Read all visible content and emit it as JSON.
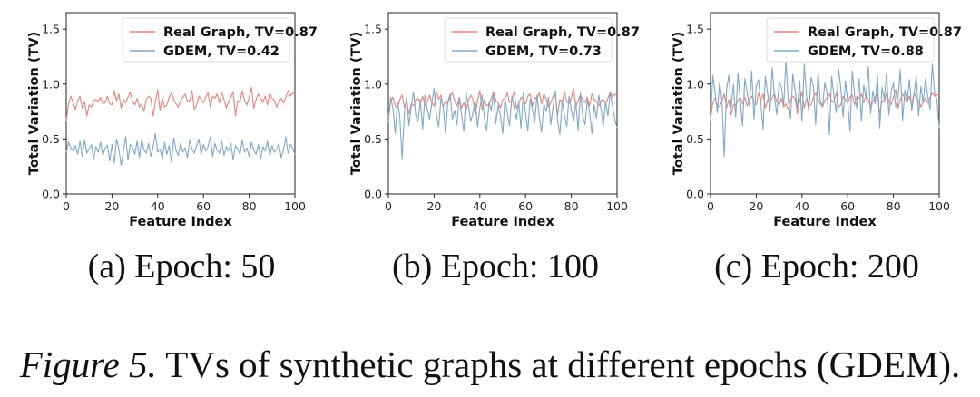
{
  "figure": {
    "caption_label": "Figure 5.",
    "caption_text": " TVs of synthetic graphs at different epochs (GDEM)."
  },
  "colors": {
    "real": "#e8837b",
    "gdem": "#7fa8c9"
  },
  "chart_data": [
    {
      "type": "line",
      "subcaption": "(a) Epoch: 50",
      "xlabel": "Feature Index",
      "ylabel": "Total Variation (TV)",
      "xlim": [
        0,
        100
      ],
      "ylim": [
        0.0,
        1.65
      ],
      "xticks": [
        "0",
        "20",
        "40",
        "60",
        "80",
        "100"
      ],
      "yticks": [
        "0.0",
        "0.5",
        "1.0",
        "1.5"
      ],
      "legend_position": "top-right",
      "series": [
        {
          "name": "Real Graph, TV=0.87",
          "values": [
            0.67,
            0.82,
            0.89,
            0.83,
            0.77,
            0.85,
            0.89,
            0.78,
            0.84,
            0.71,
            0.81,
            0.79,
            0.85,
            0.86,
            0.84,
            0.88,
            0.82,
            0.83,
            0.89,
            0.82,
            0.81,
            0.94,
            0.85,
            0.91,
            0.78,
            0.86,
            0.83,
            0.88,
            0.93,
            0.84,
            0.81,
            0.87,
            0.79,
            0.82,
            0.75,
            0.86,
            0.89,
            0.87,
            0.71,
            0.84,
            0.95,
            0.76,
            0.87,
            0.79,
            0.81,
            0.88,
            0.92,
            0.86,
            0.82,
            0.79,
            0.85,
            0.88,
            0.91,
            0.84,
            0.85,
            0.94,
            0.77,
            0.81,
            0.89,
            0.86,
            0.83,
            0.88,
            0.92,
            0.79,
            0.89,
            0.87,
            0.91,
            0.83,
            0.92,
            0.86,
            0.78,
            0.84,
            0.88,
            0.93,
            0.71,
            0.85,
            0.84,
            0.94,
            0.85,
            0.81,
            0.88,
            0.97,
            0.78,
            0.86,
            0.91,
            0.87,
            0.84,
            0.89,
            0.81,
            0.92,
            0.87,
            0.85,
            0.79,
            0.84,
            0.87,
            0.83,
            0.88,
            0.94,
            0.89,
            0.92,
            0.91
          ]
        },
        {
          "name": "GDEM, TV=0.42",
          "values": [
            0.38,
            0.47,
            0.42,
            0.39,
            0.44,
            0.36,
            0.48,
            0.34,
            0.49,
            0.37,
            0.41,
            0.45,
            0.32,
            0.43,
            0.38,
            0.47,
            0.35,
            0.42,
            0.44,
            0.3,
            0.45,
            0.28,
            0.5,
            0.41,
            0.26,
            0.39,
            0.52,
            0.31,
            0.45,
            0.42,
            0.36,
            0.48,
            0.33,
            0.5,
            0.4,
            0.37,
            0.46,
            0.34,
            0.43,
            0.55,
            0.38,
            0.41,
            0.32,
            0.47,
            0.36,
            0.44,
            0.29,
            0.51,
            0.4,
            0.35,
            0.46,
            0.38,
            0.42,
            0.33,
            0.49,
            0.41,
            0.37,
            0.44,
            0.5,
            0.36,
            0.45,
            0.39,
            0.43,
            0.52,
            0.34,
            0.46,
            0.4,
            0.37,
            0.48,
            0.35,
            0.43,
            0.39,
            0.46,
            0.31,
            0.44,
            0.41,
            0.36,
            0.49,
            0.38,
            0.42,
            0.34,
            0.47,
            0.4,
            0.36,
            0.45,
            0.32,
            0.43,
            0.39,
            0.48,
            0.35,
            0.44,
            0.38,
            0.41,
            0.46,
            0.33,
            0.4,
            0.52,
            0.37,
            0.45,
            0.42,
            0.36
          ]
        }
      ]
    },
    {
      "type": "line",
      "subcaption": "(b) Epoch: 100",
      "xlabel": "Feature Index",
      "ylabel": "Total Variation (TV)",
      "xlim": [
        0,
        100
      ],
      "ylim": [
        0.0,
        1.65
      ],
      "xticks": [
        "0",
        "20",
        "40",
        "60",
        "80",
        "100"
      ],
      "yticks": [
        "0.0",
        "0.5",
        "1.0",
        "1.5"
      ],
      "legend_position": "top-right",
      "series": [
        {
          "name": "Real Graph, TV=0.87",
          "values": [
            0.7,
            0.84,
            0.88,
            0.8,
            0.78,
            0.86,
            0.9,
            0.79,
            0.85,
            0.73,
            0.82,
            0.8,
            0.86,
            0.87,
            0.83,
            0.89,
            0.81,
            0.84,
            0.9,
            0.83,
            0.8,
            0.93,
            0.86,
            0.9,
            0.79,
            0.85,
            0.82,
            0.89,
            0.92,
            0.85,
            0.8,
            0.88,
            0.78,
            0.83,
            0.76,
            0.85,
            0.9,
            0.86,
            0.72,
            0.85,
            0.94,
            0.77,
            0.86,
            0.8,
            0.82,
            0.87,
            0.93,
            0.85,
            0.83,
            0.78,
            0.86,
            0.87,
            0.92,
            0.83,
            0.86,
            0.93,
            0.78,
            0.82,
            0.88,
            0.87,
            0.82,
            0.89,
            0.91,
            0.8,
            0.88,
            0.86,
            0.92,
            0.82,
            0.91,
            0.87,
            0.79,
            0.83,
            0.89,
            0.92,
            0.72,
            0.86,
            0.83,
            0.93,
            0.84,
            0.82,
            0.87,
            0.96,
            0.79,
            0.85,
            0.9,
            0.86,
            0.83,
            0.88,
            0.8,
            0.91,
            0.86,
            0.84,
            0.8,
            0.85,
            0.86,
            0.82,
            0.87,
            0.93,
            0.88,
            0.91,
            0.9
          ]
        },
        {
          "name": "GDEM, TV=0.73",
          "values": [
            0.65,
            0.88,
            0.78,
            0.55,
            0.84,
            0.7,
            0.32,
            0.74,
            0.88,
            0.62,
            0.8,
            0.93,
            0.71,
            0.66,
            0.85,
            0.59,
            0.9,
            0.77,
            0.68,
            0.82,
            0.96,
            0.72,
            0.61,
            0.87,
            0.79,
            0.55,
            0.84,
            0.91,
            0.68,
            0.76,
            0.63,
            0.88,
            0.72,
            0.57,
            0.93,
            0.8,
            0.66,
            0.74,
            0.85,
            0.61,
            0.78,
            0.9,
            0.69,
            0.58,
            0.83,
            0.76,
            0.92,
            0.64,
            0.81,
            0.71,
            0.55,
            0.87,
            0.74,
            0.62,
            0.89,
            0.79,
            0.68,
            0.84,
            0.6,
            0.92,
            0.73,
            0.58,
            0.86,
            0.77,
            0.65,
            0.9,
            0.7,
            0.56,
            0.82,
            0.75,
            0.88,
            0.63,
            0.79,
            0.94,
            0.67,
            0.54,
            0.85,
            0.72,
            0.61,
            0.89,
            0.76,
            0.66,
            0.83,
            0.58,
            0.92,
            0.71,
            0.63,
            0.86,
            0.74,
            0.55,
            0.81,
            0.69,
            0.9,
            0.77,
            0.62,
            0.84,
            0.71,
            0.93,
            0.8,
            0.68,
            0.6
          ]
        }
      ]
    },
    {
      "type": "line",
      "subcaption": "(c) Epoch: 200",
      "xlabel": "Feature Index",
      "ylabel": "Total Variation (TV)",
      "xlim": [
        0,
        100
      ],
      "ylim": [
        0.0,
        1.65
      ],
      "xticks": [
        "0",
        "20",
        "40",
        "60",
        "80",
        "100"
      ],
      "yticks": [
        "0.0",
        "0.5",
        "1.0",
        "1.5"
      ],
      "legend_position": "top-right",
      "series": [
        {
          "name": "Real Graph, TV=0.87",
          "values": [
            0.68,
            0.83,
            0.87,
            0.81,
            0.79,
            0.85,
            0.91,
            0.78,
            0.86,
            0.72,
            0.81,
            0.81,
            0.85,
            0.88,
            0.82,
            0.88,
            0.8,
            0.85,
            0.89,
            0.84,
            0.81,
            0.92,
            0.85,
            0.91,
            0.78,
            0.86,
            0.83,
            0.88,
            0.91,
            0.84,
            0.81,
            0.87,
            0.79,
            0.82,
            0.77,
            0.86,
            0.89,
            0.87,
            0.73,
            0.84,
            0.93,
            0.78,
            0.87,
            0.81,
            0.81,
            0.88,
            0.92,
            0.86,
            0.82,
            0.79,
            0.85,
            0.88,
            0.91,
            0.84,
            0.85,
            0.92,
            0.79,
            0.81,
            0.89,
            0.86,
            0.83,
            0.88,
            0.9,
            0.81,
            0.89,
            0.87,
            0.91,
            0.83,
            0.9,
            0.86,
            0.78,
            0.84,
            0.88,
            0.91,
            0.73,
            0.85,
            0.84,
            0.92,
            0.85,
            0.81,
            0.88,
            0.95,
            0.78,
            0.86,
            0.91,
            0.87,
            0.84,
            0.89,
            0.81,
            0.92,
            0.87,
            0.85,
            0.79,
            0.84,
            0.87,
            0.83,
            0.88,
            0.92,
            0.89,
            0.9,
            0.91
          ]
        },
        {
          "name": "GDEM, TV=0.88",
          "values": [
            0.66,
            1.08,
            0.92,
            0.74,
            1.02,
            0.85,
            0.34,
            0.95,
            1.08,
            0.78,
            1.0,
            0.7,
            1.1,
            0.86,
            0.62,
            1.05,
            0.93,
            0.8,
            1.12,
            0.68,
            0.98,
            1.04,
            0.83,
            0.59,
            1.07,
            0.91,
            0.76,
            1.15,
            0.88,
            0.72,
            1.02,
            0.97,
            0.81,
            1.22,
            0.86,
            0.69,
            1.09,
            0.94,
            0.78,
            1.03,
            0.66,
            1.18,
            0.89,
            0.75,
            1.06,
            0.98,
            0.63,
            1.11,
            0.85,
            0.79,
            1.01,
            0.92,
            0.54,
            1.07,
            0.88,
            0.74,
            1.14,
            0.96,
            0.7,
            1.03,
            0.84,
            0.57,
            1.12,
            0.9,
            0.78,
            1.05,
            0.66,
            0.99,
            0.87,
            1.16,
            0.73,
            0.94,
            0.82,
            1.08,
            0.6,
            0.97,
            0.86,
            1.1,
            0.72,
            0.93,
            1.01,
            0.79,
            0.88,
            1.13,
            0.67,
            0.95,
            0.84,
            1.04,
            0.76,
            0.91,
            1.07,
            0.71,
            0.98,
            0.83,
            1.05,
            0.89,
            0.77,
            1.18,
            0.92,
            0.86,
            0.6
          ]
        }
      ]
    }
  ]
}
